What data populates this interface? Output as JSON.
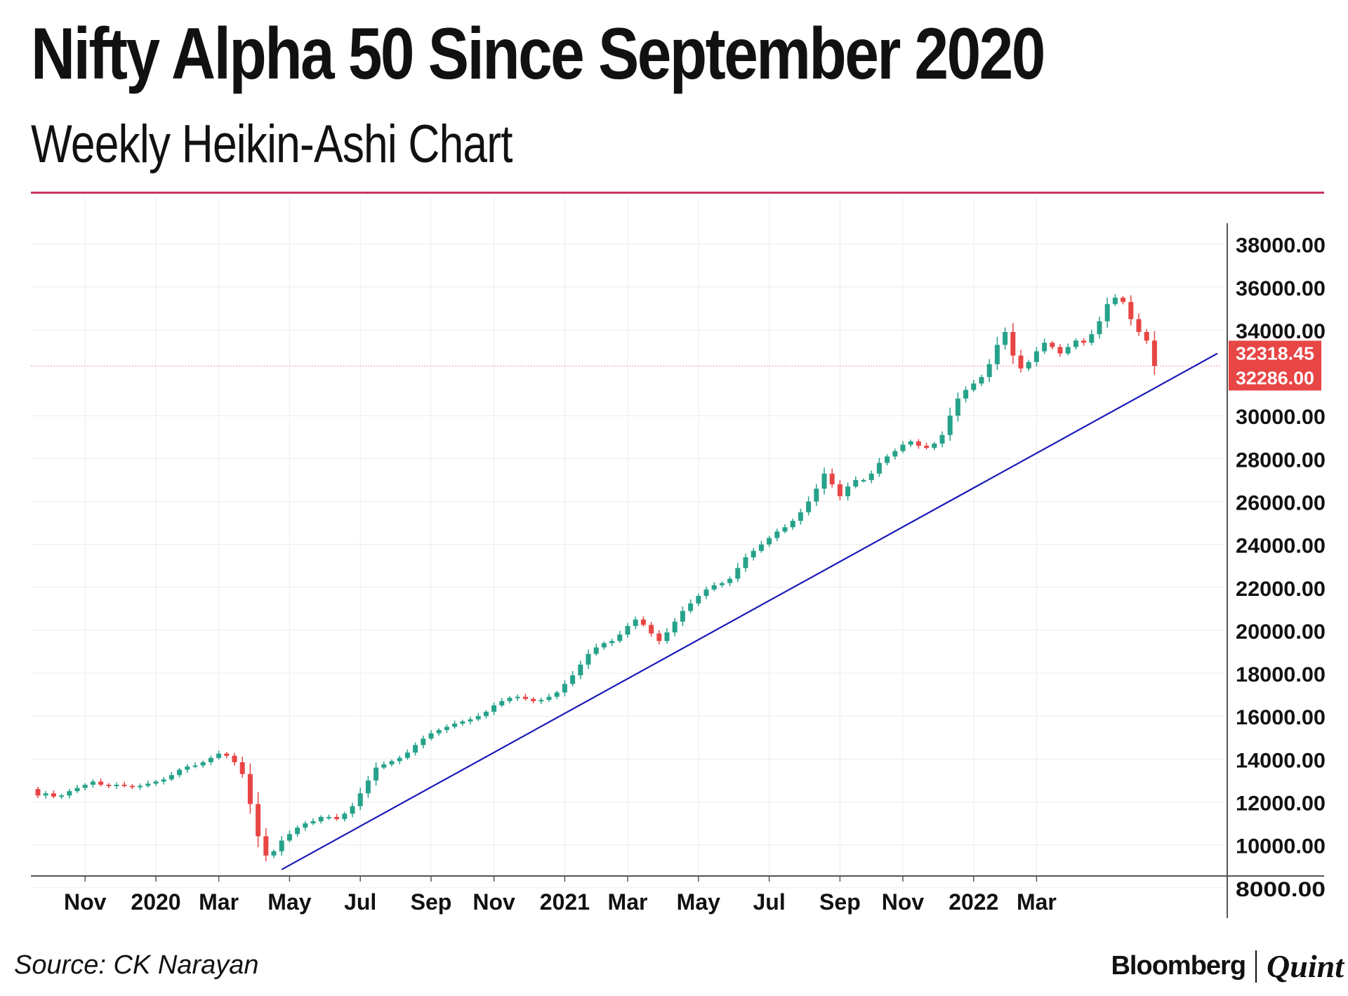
{
  "header": {
    "title": "Nifty Alpha 50 Since September 2020",
    "subtitle": "Weekly Heikin-Ashi Chart"
  },
  "footer": {
    "source": "Source: CK Narayan",
    "brand_left": "Bloomberg",
    "brand_right": "Quint"
  },
  "colors": {
    "accent_rule": "#c8355f",
    "up": "#26a28a",
    "down": "#e84545",
    "trendline": "#1a1ab8",
    "grid": "#ececec",
    "price_line": "#f2b0ae",
    "label_bg": "#e84545"
  },
  "chart_data": {
    "type": "candlestick",
    "title": "Nifty Alpha 50 Since September 2020",
    "subtitle": "Weekly Heikin-Ashi Chart",
    "xlabel": "",
    "ylabel": "",
    "ylim": [
      7600,
      39200
    ],
    "grid": true,
    "y_ticks": [
      8000,
      10000,
      12000,
      14000,
      16000,
      18000,
      20000,
      22000,
      24000,
      26000,
      28000,
      30000,
      34000,
      36000,
      38000
    ],
    "y_tick_labels": [
      "8000.00",
      "10000.00",
      "12000.00",
      "14000.00",
      "16000.00",
      "18000.00",
      "20000.00",
      "22000.00",
      "24000.00",
      "26000.00",
      "28000.00",
      "30000.00",
      "34000.00",
      "36000.00",
      "38000.00"
    ],
    "x_ticks": [
      {
        "label": "Nov",
        "week": 6
      },
      {
        "label": "2020",
        "week": 15
      },
      {
        "label": "Mar",
        "week": 23
      },
      {
        "label": "May",
        "week": 32
      },
      {
        "label": "Jul",
        "week": 41
      },
      {
        "label": "Sep",
        "week": 50
      },
      {
        "label": "Nov",
        "week": 58
      },
      {
        "label": "2021",
        "week": 67
      },
      {
        "label": "Mar",
        "week": 75
      },
      {
        "label": "May",
        "week": 84
      },
      {
        "label": "Jul",
        "week": 93
      },
      {
        "label": "Sep",
        "week": 102
      },
      {
        "label": "Nov",
        "week": 110
      },
      {
        "label": "2022",
        "week": 119
      },
      {
        "label": "Mar",
        "week": 127
      }
    ],
    "candles_start": 12600,
    "weekly_closes": [
      12300,
      12400,
      12250,
      12300,
      12500,
      12650,
      12800,
      12950,
      12800,
      12750,
      12800,
      12750,
      12700,
      12750,
      12850,
      12950,
      13050,
      13250,
      13500,
      13650,
      13700,
      13850,
      14050,
      14250,
      14150,
      13850,
      13300,
      11900,
      10400,
      9500,
      9700,
      10200,
      10500,
      10800,
      11000,
      11100,
      11300,
      11300,
      11200,
      11450,
      11800,
      12400,
      13000,
      13600,
      13750,
      13900,
      14050,
      14300,
      14650,
      14950,
      15200,
      15350,
      15500,
      15650,
      15750,
      15850,
      16000,
      16200,
      16500,
      16700,
      16850,
      16900,
      16800,
      16700,
      16750,
      16900,
      17100,
      17500,
      17900,
      18400,
      18900,
      19200,
      19400,
      19500,
      19800,
      20200,
      20500,
      20250,
      19850,
      19500,
      19900,
      20400,
      20900,
      21250,
      21600,
      21900,
      22100,
      22200,
      22400,
      22900,
      23400,
      23700,
      24000,
      24300,
      24600,
      24800,
      25100,
      25500,
      26000,
      26600,
      27300,
      26800,
      26250,
      26700,
      27000,
      27000,
      27300,
      27800,
      28100,
      28350,
      28650,
      28800,
      28600,
      28500,
      28700,
      29100,
      30000,
      30800,
      31200,
      31500,
      31800,
      32400,
      33300,
      33900,
      32800,
      32200,
      32500,
      33000,
      33400,
      33200,
      32900,
      33200,
      33500,
      33400,
      33800,
      34400,
      35200,
      35500,
      35300,
      34500,
      33900,
      33500,
      32318
    ],
    "last_price_labels": [
      "32318.45",
      "32286.00"
    ],
    "trendline": {
      "from_week": 31,
      "from_value": 8850,
      "to_week": 150,
      "to_value": 32900
    }
  }
}
